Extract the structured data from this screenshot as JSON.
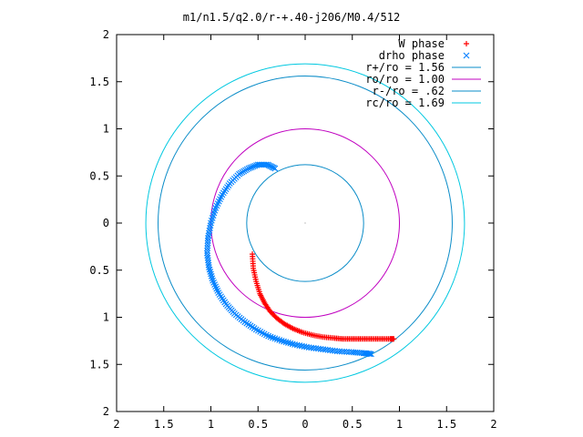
{
  "chart_data": {
    "type": "scatter",
    "title": "m1/n1.5/q2.0/r-+.40-j206/M0.4/512",
    "xlabel": "",
    "ylabel": "",
    "xlim": [
      -2,
      2
    ],
    "ylim": [
      -2,
      2
    ],
    "x_ticks": [
      -2,
      -1.5,
      -1,
      -0.5,
      0,
      0.5,
      1,
      1.5,
      2
    ],
    "y_ticks": [
      -2,
      -1.5,
      -1,
      -0.5,
      0,
      0.5,
      1,
      1.5,
      2
    ],
    "x_tick_labels": [
      "2",
      "1.5",
      "1",
      "0.5",
      "0",
      "0.5",
      "1",
      "1.5",
      "2"
    ],
    "y_tick_labels": [
      "2",
      "1.5",
      "1",
      "0.5",
      "0",
      "0.5",
      "1",
      "1.5",
      "2"
    ],
    "grid": false,
    "legend_position": "top-right",
    "series": [
      {
        "name": "W phase",
        "kind": "points",
        "marker": "plus",
        "color": "#ff0000",
        "x": [
          -0.56,
          -0.55,
          -0.52,
          -0.48,
          -0.43,
          -0.37,
          -0.3,
          -0.22,
          -0.13,
          -0.03,
          0.08,
          0.19,
          0.3,
          0.4,
          0.5,
          0.6,
          0.7,
          0.8,
          0.9,
          0.94
        ],
        "y": [
          -0.33,
          -0.48,
          -0.62,
          -0.75,
          -0.85,
          -0.94,
          -1.01,
          -1.07,
          -1.12,
          -1.16,
          -1.19,
          -1.21,
          -1.22,
          -1.23,
          -1.23,
          -1.23,
          -1.23,
          -1.23,
          -1.23,
          -1.23
        ]
      },
      {
        "name": "drho phase",
        "kind": "points",
        "marker": "cross",
        "color": "#0080ff",
        "x": [
          -0.32,
          -0.4,
          -0.5,
          -0.6,
          -0.7,
          -0.8,
          -0.88,
          -0.95,
          -1.0,
          -1.03,
          -1.04,
          -1.02,
          -0.98,
          -0.92,
          -0.84,
          -0.75,
          -0.64,
          -0.52,
          -0.39,
          -0.25,
          -0.11,
          0.04,
          0.19,
          0.34,
          0.49,
          0.62,
          0.7
        ],
        "y": [
          0.58,
          0.62,
          0.62,
          0.58,
          0.52,
          0.42,
          0.3,
          0.16,
          0.0,
          -0.16,
          -0.32,
          -0.47,
          -0.61,
          -0.74,
          -0.86,
          -0.96,
          -1.05,
          -1.13,
          -1.2,
          -1.25,
          -1.29,
          -1.32,
          -1.34,
          -1.36,
          -1.37,
          -1.38,
          -1.39
        ]
      },
      {
        "name": "r+/ro = 1.56",
        "kind": "circle",
        "radius": 1.56,
        "color": "#0a8cc8"
      },
      {
        "name": "ro/ro = 1.00",
        "kind": "circle",
        "radius": 1.0,
        "color": "#c000c0"
      },
      {
        "name": "r-/ro = .62",
        "kind": "circle",
        "radius": 0.62,
        "color": "#0a8cc8"
      },
      {
        "name": "rc/ro = 1.69",
        "kind": "circle",
        "radius": 1.69,
        "color": "#00c8e0"
      }
    ]
  }
}
